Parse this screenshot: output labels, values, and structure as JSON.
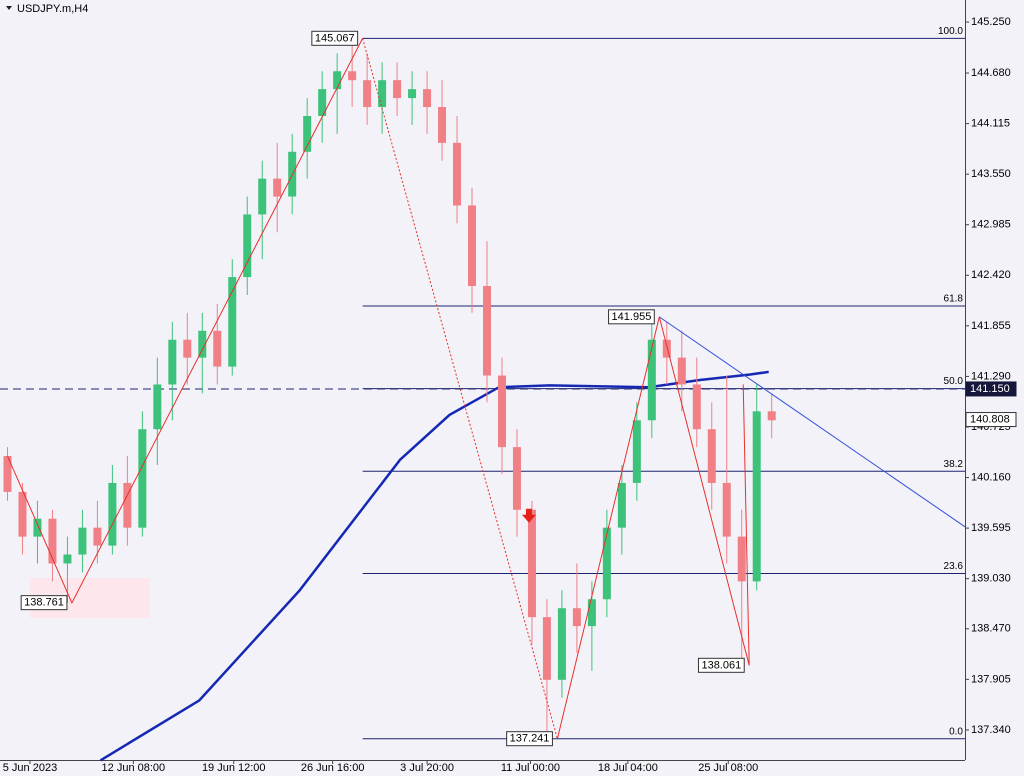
{
  "chart_data": {
    "type": "candlestick",
    "title": "USDJPY.m,H4",
    "x": [
      0,
      1,
      2,
      3,
      4,
      5,
      6,
      7,
      8,
      9,
      10,
      11,
      12,
      13,
      14,
      15,
      16,
      17,
      18,
      19,
      20,
      21,
      22,
      23,
      24,
      25,
      26,
      27,
      28,
      29,
      30,
      31,
      32,
      33,
      34,
      35,
      36,
      37,
      38,
      39,
      40,
      41,
      42,
      43,
      44,
      45,
      46,
      47,
      48,
      49,
      50,
      51
    ],
    "open": [
      140.4,
      140.0,
      139.5,
      139.7,
      139.2,
      139.3,
      139.6,
      139.4,
      140.1,
      139.6,
      140.7,
      141.2,
      141.7,
      141.5,
      141.8,
      141.4,
      142.4,
      143.1,
      143.5,
      143.3,
      143.8,
      144.2,
      144.5,
      144.7,
      144.6,
      144.3,
      144.6,
      144.4,
      144.5,
      144.3,
      143.9,
      143.2,
      142.3,
      141.3,
      140.5,
      139.8,
      138.6,
      137.9,
      138.7,
      138.5,
      138.8,
      139.6,
      140.1,
      140.8,
      141.7,
      141.5,
      141.2,
      140.7,
      140.1,
      139.5,
      139.0,
      140.9
    ],
    "high": [
      140.5,
      140.1,
      139.9,
      139.8,
      139.5,
      139.8,
      139.9,
      140.3,
      140.4,
      140.9,
      141.5,
      141.9,
      142.0,
      142.0,
      142.1,
      142.6,
      143.3,
      143.7,
      143.9,
      144.0,
      144.4,
      144.7,
      144.9,
      145.067,
      144.9,
      144.8,
      144.8,
      144.7,
      144.7,
      144.6,
      144.2,
      143.4,
      142.8,
      141.5,
      140.7,
      139.9,
      138.8,
      138.9,
      139.2,
      139.0,
      139.8,
      140.3,
      141.0,
      141.955,
      141.9,
      141.8,
      141.5,
      141.0,
      141.3,
      139.8,
      141.2,
      141.1
    ],
    "low": [
      139.9,
      139.3,
      139.2,
      139.0,
      138.761,
      139.1,
      139.2,
      139.3,
      139.4,
      139.5,
      140.3,
      140.8,
      141.2,
      141.1,
      141.2,
      141.3,
      142.2,
      142.6,
      142.9,
      143.1,
      143.5,
      143.9,
      144.0,
      144.3,
      144.1,
      144.0,
      144.2,
      144.1,
      144.0,
      143.7,
      143.0,
      142.0,
      141.0,
      140.2,
      139.5,
      138.3,
      137.241,
      137.7,
      138.2,
      138.0,
      138.6,
      139.3,
      139.9,
      140.6,
      141.2,
      140.9,
      140.5,
      139.8,
      139.2,
      138.061,
      138.9,
      140.6
    ],
    "close": [
      140.0,
      139.5,
      139.7,
      139.2,
      139.3,
      139.6,
      139.4,
      140.1,
      139.6,
      140.7,
      141.2,
      141.7,
      141.5,
      141.8,
      141.4,
      142.4,
      143.1,
      143.5,
      143.3,
      143.8,
      144.2,
      144.5,
      144.7,
      144.6,
      144.3,
      144.6,
      144.4,
      144.5,
      144.3,
      143.9,
      143.2,
      142.3,
      141.3,
      140.5,
      139.8,
      138.6,
      137.9,
      138.7,
      138.5,
      138.8,
      139.6,
      140.1,
      140.8,
      141.7,
      141.5,
      141.2,
      140.7,
      140.1,
      139.5,
      139.0,
      140.9,
      140.8
    ],
    "colors": {
      "up": "#3cc27a",
      "down": "#f07f86"
    },
    "xlim": [
      -0.5,
      63.9
    ],
    "ylim": [
      137.004,
      145.496
    ],
    "xticks": [
      {
        "value": 1.5,
        "label": "5 Jun 2023"
      },
      {
        "value": 8.4,
        "label": "12 Jun 08:00"
      },
      {
        "value": 15.1,
        "label": "19 Jun 12:00"
      },
      {
        "value": 21.7,
        "label": "26 Jun 16:00"
      },
      {
        "value": 28,
        "label": "3 Jul 20:00"
      },
      {
        "value": 34.9,
        "label": "11 Jul 00:00"
      },
      {
        "value": 41.4,
        "label": "18 Jul 04:00"
      },
      {
        "value": 48.1,
        "label": "25 Jul 08:00"
      }
    ],
    "yticks": [
      {
        "value": 145.25,
        "label": "145.250"
      },
      {
        "value": 144.68,
        "label": "144.680"
      },
      {
        "value": 144.115,
        "label": "144.115"
      },
      {
        "value": 143.55,
        "label": "143.550"
      },
      {
        "value": 142.985,
        "label": "142.985"
      },
      {
        "value": 142.42,
        "label": "142.420"
      },
      {
        "value": 141.855,
        "label": "141.855"
      },
      {
        "value": 141.29,
        "label": "141.290"
      },
      {
        "value": 140.725,
        "label": "140.725"
      },
      {
        "value": 140.16,
        "label": "140.160"
      },
      {
        "value": 139.595,
        "label": "139.595"
      },
      {
        "value": 139.03,
        "label": "139.030"
      },
      {
        "value": 138.47,
        "label": "138.470"
      },
      {
        "value": 137.905,
        "label": "137.905"
      },
      {
        "value": 137.34,
        "label": "137.340"
      }
    ],
    "ma": {
      "color": "#1428b4",
      "x": [
        6.2,
        12.8,
        19.5,
        26.2,
        29.5,
        32.8,
        36.2,
        42.8,
        46.2,
        49.5,
        50.8
      ],
      "values": [
        137.0,
        137.67,
        138.9,
        140.36,
        140.86,
        141.17,
        141.19,
        141.17,
        141.25,
        141.31,
        141.34
      ]
    },
    "fib": {
      "color": "#1c2470",
      "x": [
        23.7,
        63.9
      ],
      "levels": [
        {
          "label": "100.0",
          "value": 145.067
        },
        {
          "label": "61.8",
          "value": 142.077
        },
        {
          "label": "50.0",
          "value": 141.154
        },
        {
          "label": "38.2",
          "value": 140.231
        },
        {
          "label": "23.6",
          "value": 139.088
        },
        {
          "label": "0.0",
          "value": 137.241
        }
      ]
    },
    "zigzag": {
      "color": "#e8302a",
      "x": [
        0,
        4.3,
        23.7,
        null,
        36.7,
        43.5,
        49.5,
        49.1
      ],
      "values": [
        140.4,
        138.761,
        145.067,
        null,
        137.241,
        141.955,
        138.061,
        141.2
      ]
    },
    "zigzag_dotted": {
      "x": [
        23.7,
        36.7
      ],
      "values": [
        145.067,
        137.241
      ]
    },
    "pivots": {
      "x": [
        23.7,
        4.3,
        36.7,
        43.5,
        49.5
      ],
      "values": [
        145.067,
        138.761,
        137.241,
        141.955,
        138.061
      ]
    },
    "trendline": {
      "color": "#2f4fd8",
      "x": [
        43.5,
        63.9
      ],
      "values": [
        141.955,
        139.61
      ]
    },
    "price_lines": [
      {
        "value": 141.15,
        "label": "141.150"
      },
      {
        "value": 140.808,
        "label": "140.808"
      }
    ],
    "signal": {
      "x": 34.8,
      "value": 139.7,
      "color": "#e8201a"
    }
  }
}
